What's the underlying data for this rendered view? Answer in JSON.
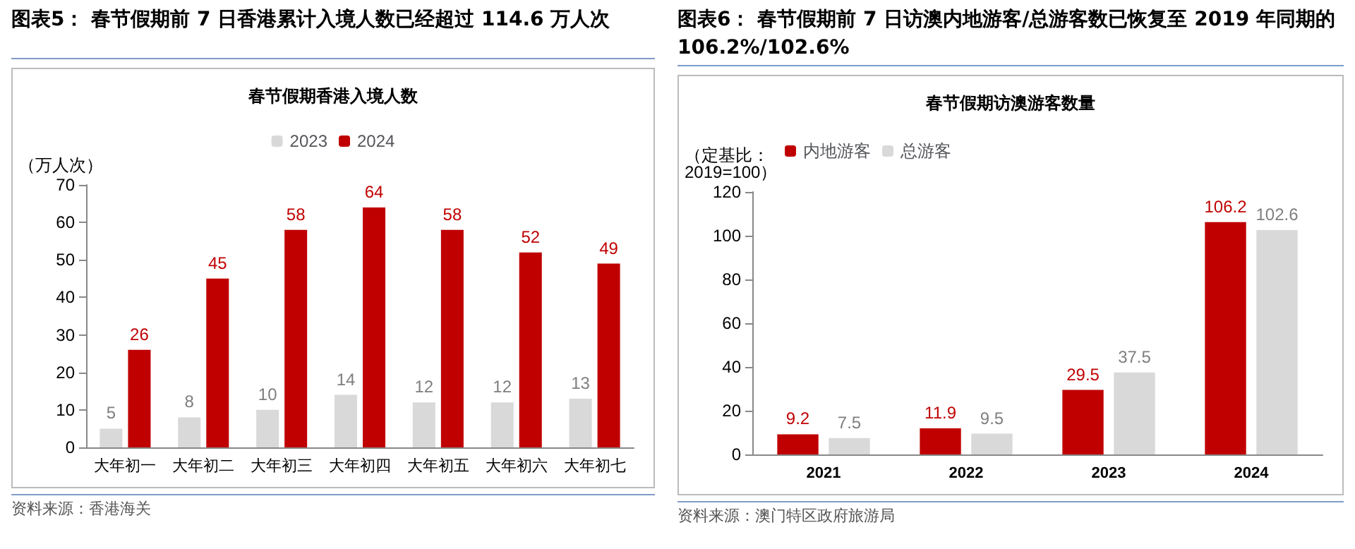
{
  "chart_data": [
    {
      "type": "bar",
      "title": "图表5：  春节假期前 7 日香港累计入境人数已经超过 114.6 万人次",
      "subtitle": "春节假期香港入境人数",
      "ylabel": "（万人次）",
      "categories": [
        "大年初一",
        "大年初二",
        "大年初三",
        "大年初四",
        "大年初五",
        "大年初六",
        "大年初七"
      ],
      "series": [
        {
          "name": "2023",
          "color": "#d9d9d9",
          "values": [
            5,
            8,
            10,
            14,
            12,
            12,
            13
          ]
        },
        {
          "name": "2024",
          "color": "#c00000",
          "values": [
            26,
            45,
            58,
            64,
            58,
            52,
            49
          ]
        }
      ],
      "ylim": [
        0,
        70
      ],
      "yticks": [
        0,
        10,
        20,
        30,
        40,
        50,
        60,
        70
      ],
      "grid": false,
      "legend": "top",
      "data_labels": true,
      "annotations": [
        "资料来源：香港海关"
      ]
    },
    {
      "type": "bar",
      "title": "图表6：  春节假期前 7 日访澳内地游客/总游客数已恢复至 2019 年同期的 106.2%/102.6%",
      "subtitle": "春节假期访澳游客数量",
      "ylabel": "（定基比：\n2019=100）",
      "categories": [
        "2021",
        "2022",
        "2023",
        "2024"
      ],
      "series": [
        {
          "name": "内地游客",
          "color": "#c00000",
          "values": [
            9.2,
            11.9,
            29.5,
            106.2
          ]
        },
        {
          "name": "总游客",
          "color": "#d9d9d9",
          "values": [
            7.5,
            9.5,
            37.5,
            102.6
          ]
        }
      ],
      "ylim": [
        0,
        120
      ],
      "yticks": [
        0,
        20,
        40,
        60,
        80,
        100,
        120
      ],
      "grid": false,
      "legend": "top left",
      "data_labels": true,
      "annotations": [
        "资料来源：澳门特区政府旅游局"
      ]
    }
  ]
}
